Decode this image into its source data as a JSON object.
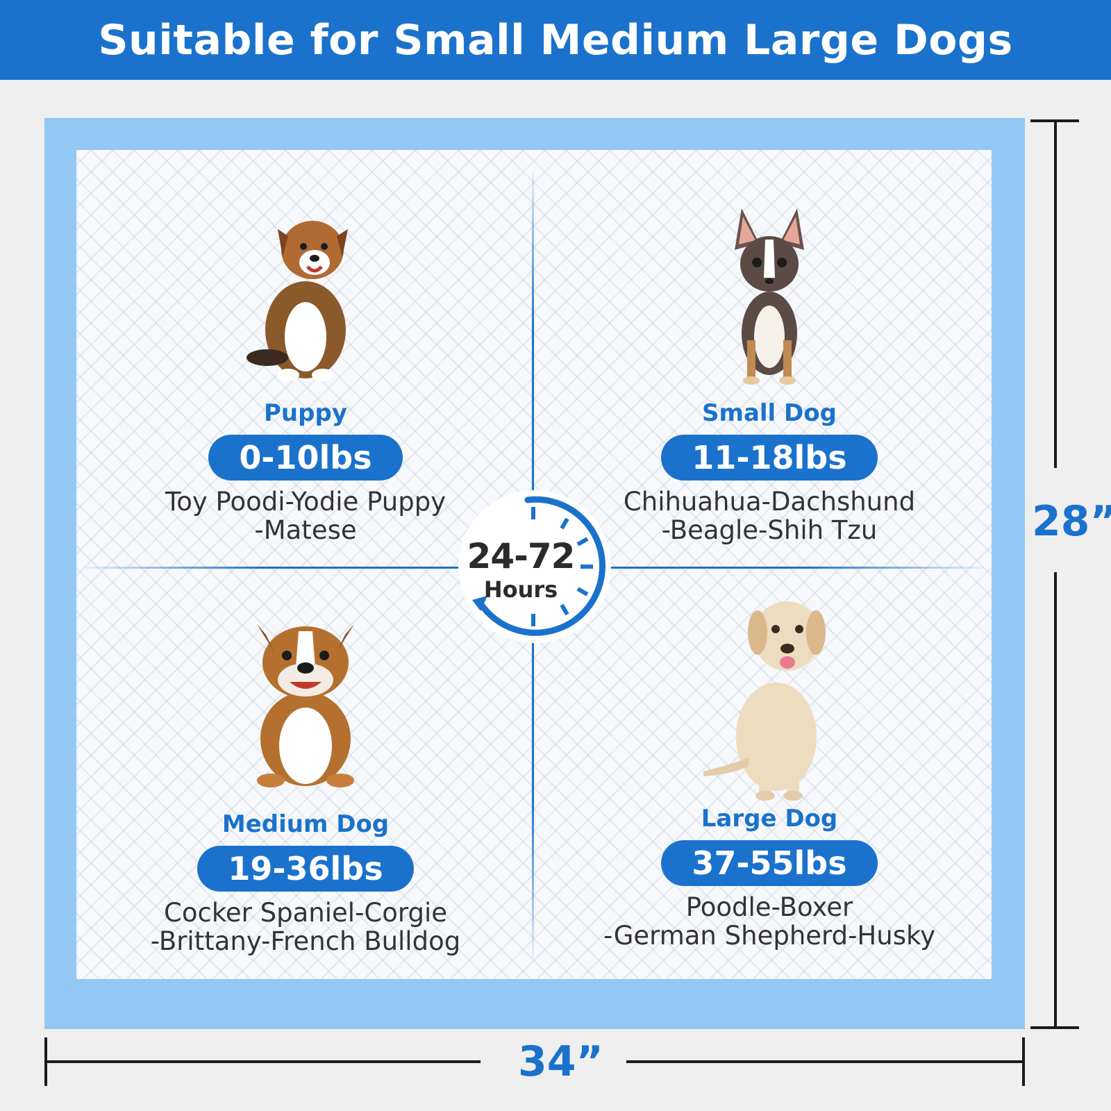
{
  "header": {
    "title": "Suitable for Small Medium Large Dogs"
  },
  "colors": {
    "accent": "#1a72cc",
    "pad_border": "#93c7f4",
    "text": "#333333"
  },
  "clock": {
    "duration": "24-72",
    "unit": "Hours"
  },
  "dimensions": {
    "height": "28”",
    "width": "34”"
  },
  "categories": [
    {
      "title": "Puppy",
      "weight": "0-10lbs",
      "breeds": "Toy Poodi-Yodie Puppy\n-Matese",
      "icon": "puppy-image"
    },
    {
      "title": "Small Dog",
      "weight": "11-18lbs",
      "breeds": "Chihuahua-Dachshund\n-Beagle-Shih Tzu",
      "icon": "chihuahua-image"
    },
    {
      "title": "Medium Dog",
      "weight": "19-36lbs",
      "breeds": "Cocker Spaniel-Corgie\n-Brittany-French Bulldog",
      "icon": "bulldog-image"
    },
    {
      "title": "Large Dog",
      "weight": "37-55lbs",
      "breeds": "Poodle-Boxer\n-German Shepherd-Husky",
      "icon": "labrador-image"
    }
  ]
}
